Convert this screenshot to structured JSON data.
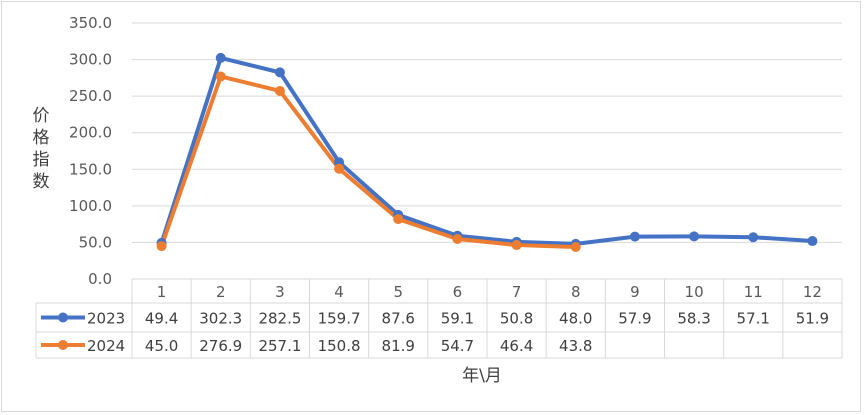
{
  "chart_data": {
    "type": "line",
    "categories": [
      "1",
      "2",
      "3",
      "4",
      "5",
      "6",
      "7",
      "8",
      "9",
      "10",
      "11",
      "12"
    ],
    "series": [
      {
        "name": "2023",
        "values": [
          49.4,
          302.3,
          282.5,
          159.7,
          87.6,
          59.1,
          50.8,
          48.0,
          57.9,
          58.3,
          57.1,
          51.9
        ],
        "value_labels": [
          "49.4",
          "302.3",
          "282.5",
          "159.7",
          "87.6",
          "59.1",
          "50.8",
          "48.0",
          "57.9",
          "58.3",
          "57.1",
          "51.9"
        ],
        "color": "#4472C4"
      },
      {
        "name": "2024",
        "values": [
          45.0,
          276.9,
          257.1,
          150.8,
          81.9,
          54.7,
          46.4,
          43.8,
          null,
          null,
          null,
          null
        ],
        "value_labels": [
          "45.0",
          "276.9",
          "257.1",
          "150.8",
          "81.9",
          "54.7",
          "46.4",
          "43.8",
          "",
          "",
          "",
          ""
        ],
        "color": "#ED7D31"
      }
    ],
    "ylabel": "价格指数",
    "xlabel": "年\\月",
    "ylim": [
      0,
      350
    ],
    "yticks": [
      "0.0",
      "50.0",
      "100.0",
      "150.0",
      "200.0",
      "250.0",
      "300.0",
      "350.0"
    ],
    "grid": true,
    "legend": "data-table"
  }
}
